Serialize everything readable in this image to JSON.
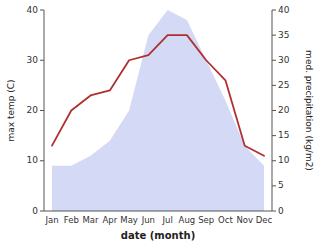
{
  "chart_data": {
    "type": "line",
    "categories": [
      "Jan",
      "Feb",
      "Mar",
      "Apr",
      "May",
      "Jun",
      "Jul",
      "Aug",
      "Sep",
      "Oct",
      "Nov",
      "Dec"
    ],
    "x_label": "date (month)",
    "y_label": "max temp (C)",
    "y2_label": "med. precipitation (kg/m2)",
    "series": [
      {
        "type": "area",
        "axis": "y2",
        "color": "#b0bcee",
        "values": [
          9,
          9,
          11,
          14,
          20,
          35,
          40,
          38,
          30,
          22,
          13,
          9
        ]
      },
      {
        "type": "line",
        "color": "#b03030",
        "values": [
          13,
          20,
          23,
          24,
          30,
          31,
          35,
          35,
          30,
          26,
          13,
          11
        ]
      }
    ],
    "ylim": [
      0,
      40
    ],
    "yticks": [
      0,
      10,
      20,
      30,
      40
    ],
    "y2lim": [
      0,
      40
    ],
    "y2ticks": [
      0,
      5,
      10,
      15,
      20,
      25,
      30,
      35,
      40
    ],
    "grid": false
  }
}
